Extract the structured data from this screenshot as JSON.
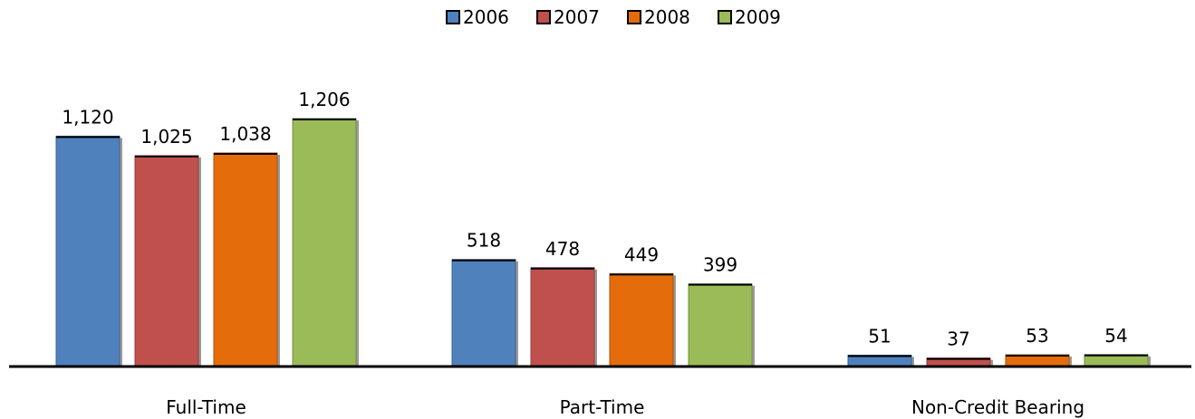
{
  "chart_data": {
    "type": "bar",
    "title": "",
    "xlabel": "",
    "ylabel": "",
    "categories": [
      "Full-Time",
      "Part-Time",
      "Non-Credit Bearing"
    ],
    "series": [
      {
        "name": "2006",
        "values": [
          1120,
          518,
          51
        ],
        "labels": [
          "1,120",
          "518",
          "51"
        ],
        "color": "#4F81BD"
      },
      {
        "name": "2007",
        "values": [
          1025,
          478,
          37
        ],
        "labels": [
          "1,025",
          "478",
          "37"
        ],
        "color": "#C0504D"
      },
      {
        "name": "2008",
        "values": [
          1038,
          449,
          53
        ],
        "labels": [
          "1,038",
          "449",
          "53"
        ],
        "color": "#E46C0A"
      },
      {
        "name": "2009",
        "values": [
          1206,
          399,
          54
        ],
        "labels": [
          "1,206",
          "399",
          "54"
        ],
        "color": "#9BBB59"
      }
    ],
    "ylim": [
      0,
      1206
    ],
    "grid": false,
    "legend": "top"
  }
}
